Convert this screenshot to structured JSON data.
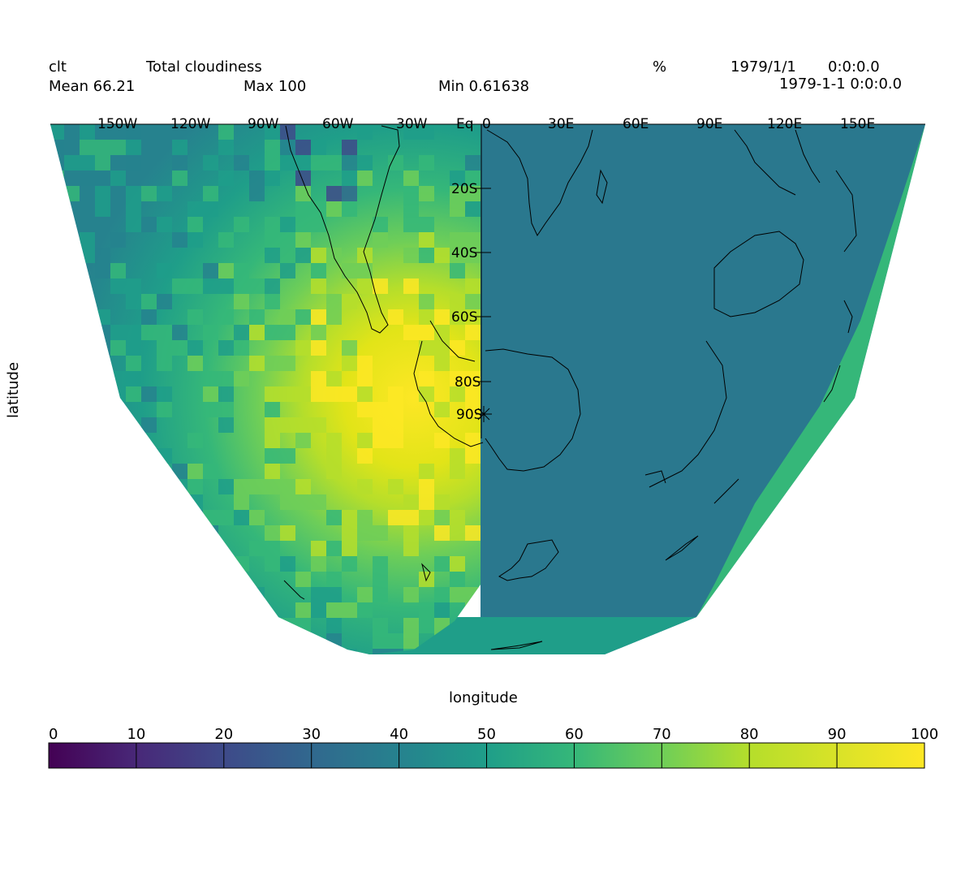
{
  "header": {
    "var_name": "clt",
    "long_name": "Total cloudiness",
    "units": "%",
    "date1": "1979/1/1",
    "time1": "0:0:0.0",
    "date2": "1979-1-1 0:0:0.0",
    "mean": "Mean 66.21",
    "max": "Max 100",
    "min": "Min 0.61638"
  },
  "axes": {
    "xlabel": "longitude",
    "ylabel": "latitude",
    "lon_ticks": [
      "150W",
      "120W",
      "90W",
      "60W",
      "30W",
      "Eq",
      "0",
      "30E",
      "60E",
      "90E",
      "120E",
      "150E"
    ],
    "lat_ticks": [
      "20S",
      "40S",
      "60S",
      "80S",
      "90S"
    ]
  },
  "colorbar": {
    "ticks": [
      "0",
      "10",
      "20",
      "30",
      "40",
      "50",
      "60",
      "70",
      "80",
      "90",
      "100"
    ],
    "colors": [
      "#440154",
      "#482878",
      "#3e4a89",
      "#31688e",
      "#26828e",
      "#1f9e89",
      "#35b779",
      "#6ece58",
      "#b5de2b",
      "#fde725"
    ]
  },
  "map": {
    "right_fill": "#2a788e",
    "edge_fill": "#35b779",
    "projection": "south-polar"
  }
}
